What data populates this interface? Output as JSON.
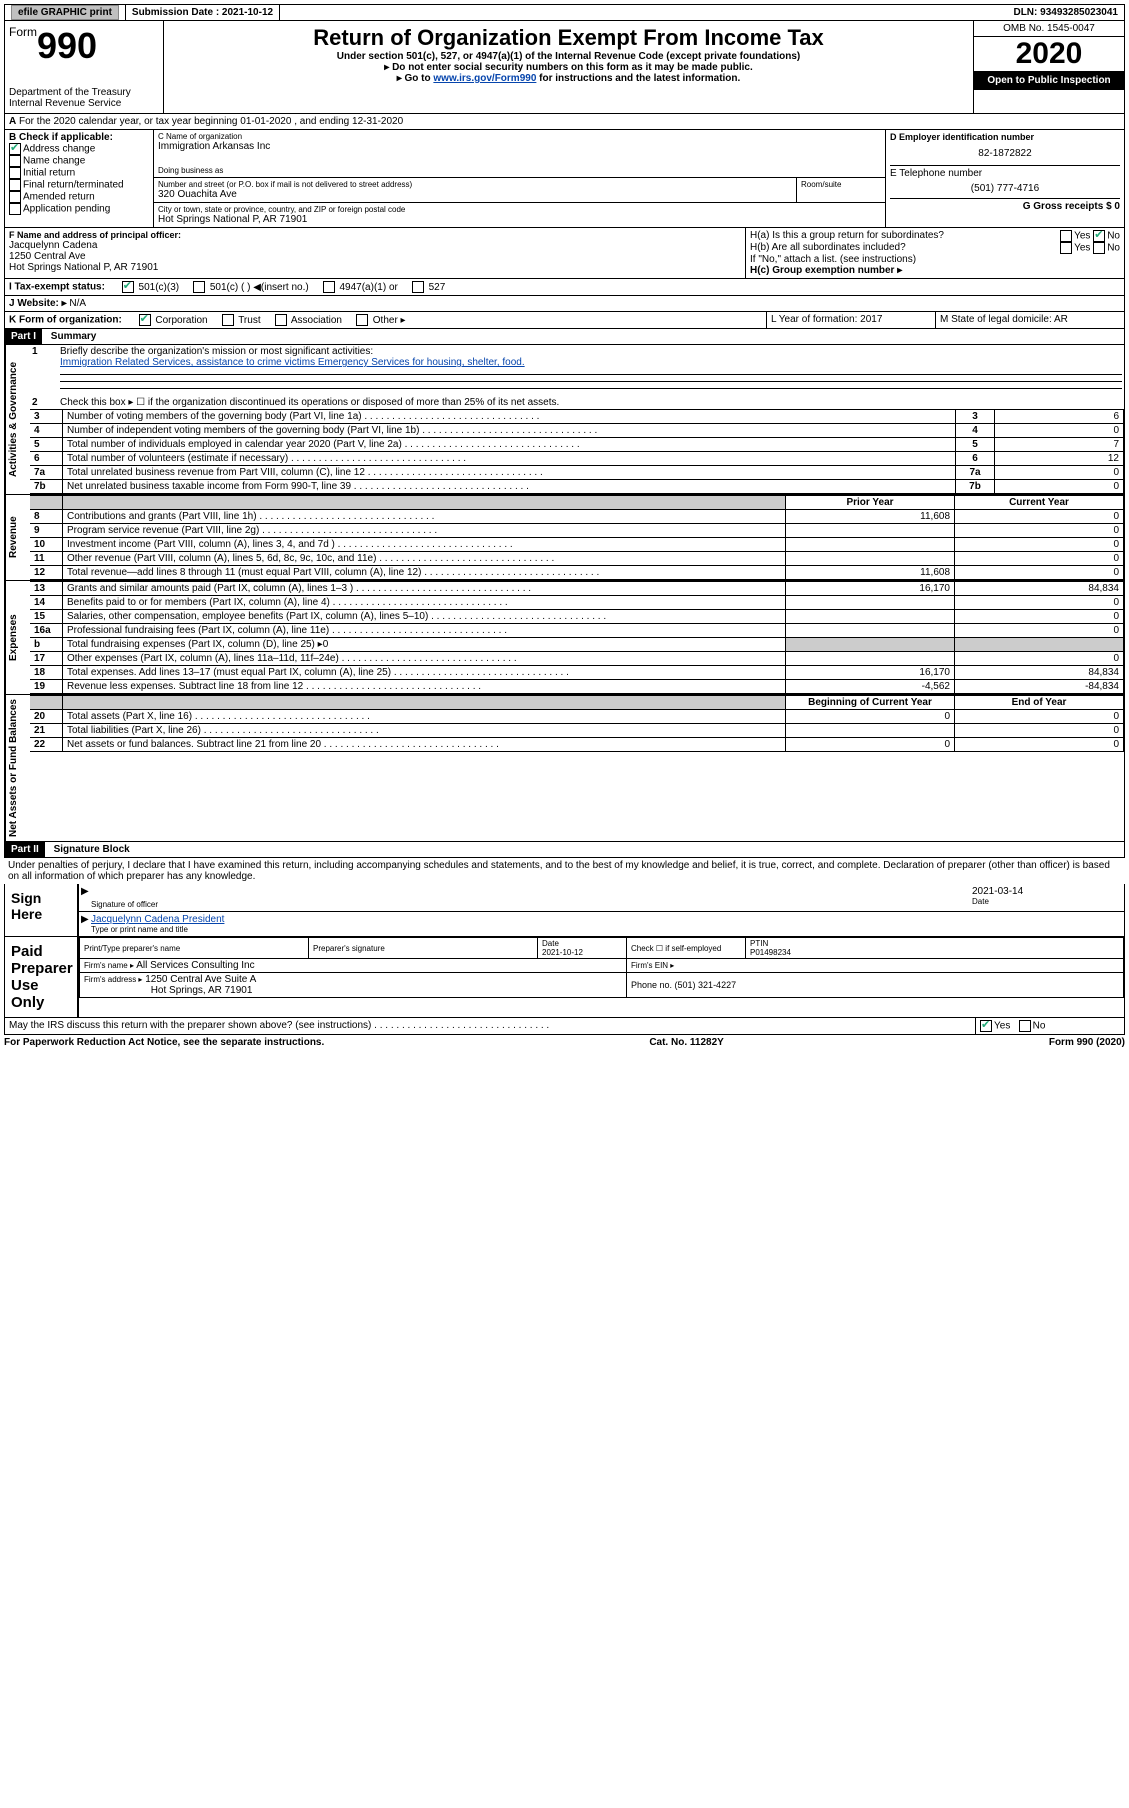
{
  "colors": {
    "link": "#0645ad",
    "dark": "#000000",
    "button_bg": "#c0c0c0",
    "check": "#22aa77",
    "shade": "#cccccc"
  },
  "topbar": {
    "efile": "efile GRAPHIC print",
    "submission_label": "Submission Date : 2021-10-12",
    "dln": "DLN: 93493285023041"
  },
  "header": {
    "form_word": "Form",
    "form_num": "990",
    "dept1": "Department of the Treasury",
    "dept2": "Internal Revenue Service",
    "title": "Return of Organization Exempt From Income Tax",
    "sub1": "Under section 501(c), 527, or 4947(a)(1) of the Internal Revenue Code (except private foundations)",
    "sub2": "▸ Do not enter social security numbers on this form as it may be made public.",
    "sub3a": "▸ Go to ",
    "sub3link": "www.irs.gov/Form990",
    "sub3b": " for instructions and the latest information.",
    "omb": "OMB No. 1545-0047",
    "year": "2020",
    "inspection": "Open to Public Inspection"
  },
  "A": {
    "text": "For the 2020 calendar year, or tax year beginning 01-01-2020    , and ending 12-31-2020"
  },
  "B": {
    "label": "B Check if applicable:",
    "items": [
      {
        "label": "Address change",
        "checked": true
      },
      {
        "label": "Name change",
        "checked": false
      },
      {
        "label": "Initial return",
        "checked": false
      },
      {
        "label": "Final return/terminated",
        "checked": false
      },
      {
        "label": "Amended return",
        "checked": false
      },
      {
        "label": "Application pending",
        "checked": false
      }
    ]
  },
  "C": {
    "name_label": "C Name of organization",
    "name": "Immigration Arkansas Inc",
    "dba_label": "Doing business as",
    "dba": "",
    "addr_label": "Number and street (or P.O. box if mail is not delivered to street address)",
    "addr": "320 Ouachita Ave",
    "room_label": "Room/suite",
    "city_label": "City or town, state or province, country, and ZIP or foreign postal code",
    "city": "Hot Springs National P, AR  71901"
  },
  "D": {
    "label": "D Employer identification number",
    "value": "82-1872822"
  },
  "E": {
    "label": "E Telephone number",
    "value": "(501) 777-4716"
  },
  "G": {
    "label": "G Gross receipts $ 0"
  },
  "F": {
    "label": "F  Name and address of principal officer:",
    "name": "Jacquelynn Cadena",
    "addr1": "1250 Central Ave",
    "addr2": "Hot Springs National P, AR  71901"
  },
  "H": {
    "a": "H(a)  Is this a group return for subordinates?",
    "a_yes": "Yes",
    "a_no": "No",
    "a_checked": "No",
    "b": "H(b)  Are all subordinates included?",
    "b_yes": "Yes",
    "b_no": "No",
    "note": "If \"No,\" attach a list. (see instructions)",
    "c": "H(c)  Group exemption number ▸"
  },
  "I": {
    "label": "I  Tax-exempt status:",
    "opts": [
      "501(c)(3)",
      "501(c) (  ) ◀(insert no.)",
      "4947(a)(1) or",
      "527"
    ],
    "checked_index": 0
  },
  "J": {
    "label": "J   Website: ▸",
    "value": "N/A"
  },
  "K": {
    "label": "K Form of organization:",
    "opts": [
      "Corporation",
      "Trust",
      "Association",
      "Other ▸"
    ],
    "checked_index": 0
  },
  "L": {
    "label": "L Year of formation: 2017"
  },
  "M": {
    "label": "M State of legal domicile: AR"
  },
  "part1": {
    "bar": "Part I",
    "title": "Summary",
    "sections": {
      "gov": {
        "label": "Activities & Governance",
        "lines": {
          "1": {
            "t": "Briefly describe the organization's mission or most significant activities:",
            "v": "Immigration Related Services, assistance to crime victims Emergency Services for housing, shelter, food."
          },
          "2": {
            "t": "Check this box ▸ ☐ if the organization discontinued its operations or disposed of more than 25% of its net assets."
          },
          "3": {
            "t": "Number of voting members of the governing body (Part VI, line 1a)",
            "box": "3",
            "val": "6"
          },
          "4": {
            "t": "Number of independent voting members of the governing body (Part VI, line 1b)",
            "box": "4",
            "val": "0"
          },
          "5": {
            "t": "Total number of individuals employed in calendar year 2020 (Part V, line 2a)",
            "box": "5",
            "val": "7"
          },
          "6": {
            "t": "Total number of volunteers (estimate if necessary)",
            "box": "6",
            "val": "12"
          },
          "7a": {
            "t": "Total unrelated business revenue from Part VIII, column (C), line 12",
            "box": "7a",
            "val": "0"
          },
          "7b": {
            "t": "Net unrelated business taxable income from Form 990-T, line 39",
            "box": "7b",
            "val": "0"
          }
        }
      },
      "rev": {
        "label": "Revenue",
        "head_prior": "Prior Year",
        "head_curr": "Current Year",
        "lines": [
          {
            "n": "8",
            "t": "Contributions and grants (Part VIII, line 1h)",
            "p": "11,608",
            "c": "0"
          },
          {
            "n": "9",
            "t": "Program service revenue (Part VIII, line 2g)",
            "p": "",
            "c": "0"
          },
          {
            "n": "10",
            "t": "Investment income (Part VIII, column (A), lines 3, 4, and 7d )",
            "p": "",
            "c": "0"
          },
          {
            "n": "11",
            "t": "Other revenue (Part VIII, column (A), lines 5, 6d, 8c, 9c, 10c, and 11e)",
            "p": "",
            "c": "0"
          },
          {
            "n": "12",
            "t": "Total revenue—add lines 8 through 11 (must equal Part VIII, column (A), line 12)",
            "p": "11,608",
            "c": "0"
          }
        ]
      },
      "exp": {
        "label": "Expenses",
        "lines": [
          {
            "n": "13",
            "t": "Grants and similar amounts paid (Part IX, column (A), lines 1–3 )",
            "p": "16,170",
            "c": "84,834"
          },
          {
            "n": "14",
            "t": "Benefits paid to or for members (Part IX, column (A), line 4)",
            "p": "",
            "c": "0"
          },
          {
            "n": "15",
            "t": "Salaries, other compensation, employee benefits (Part IX, column (A), lines 5–10)",
            "p": "",
            "c": "0"
          },
          {
            "n": "16a",
            "t": "Professional fundraising fees (Part IX, column (A), line 11e)",
            "p": "",
            "c": "0"
          },
          {
            "n": "b",
            "t": "Total fundraising expenses (Part IX, column (D), line 25) ▸0",
            "p": "shade",
            "c": "shade"
          },
          {
            "n": "17",
            "t": "Other expenses (Part IX, column (A), lines 11a–11d, 11f–24e)",
            "p": "",
            "c": "0"
          },
          {
            "n": "18",
            "t": "Total expenses. Add lines 13–17 (must equal Part IX, column (A), line 25)",
            "p": "16,170",
            "c": "84,834"
          },
          {
            "n": "19",
            "t": "Revenue less expenses. Subtract line 18 from line 12",
            "p": "-4,562",
            "c": "-84,834"
          }
        ]
      },
      "net": {
        "label": "Net Assets or Fund Balances",
        "head_prior": "Beginning of Current Year",
        "head_curr": "End of Year",
        "lines": [
          {
            "n": "20",
            "t": "Total assets (Part X, line 16)",
            "p": "0",
            "c": "0"
          },
          {
            "n": "21",
            "t": "Total liabilities (Part X, line 26)",
            "p": "",
            "c": "0"
          },
          {
            "n": "22",
            "t": "Net assets or fund balances. Subtract line 21 from line 20",
            "p": "0",
            "c": "0"
          }
        ]
      }
    }
  },
  "part2": {
    "bar": "Part II",
    "title": "Signature Block",
    "declaration": "Under penalties of perjury, I declare that I have examined this return, including accompanying schedules and statements, and to the best of my knowledge and belief, it is true, correct, and complete. Declaration of preparer (other than officer) is based on all information of which preparer has any knowledge."
  },
  "sign": {
    "here": "Sign Here",
    "sig_label": "Signature of officer",
    "date_label": "Date",
    "date": "2021-03-14",
    "name": "Jacquelynn Cadena  President",
    "name_label": "Type or print name and title"
  },
  "paid": {
    "label": "Paid Preparer Use Only",
    "h1": "Print/Type preparer's name",
    "h2": "Preparer's signature",
    "h3": "Date",
    "date": "2021-10-12",
    "h4": "Check ☐ if self-employed",
    "h5": "PTIN",
    "ptin": "P01498234",
    "firm_label": "Firm's name    ▸",
    "firm": "All Services Consulting Inc",
    "ein_label": "Firm's EIN ▸",
    "addr_label": "Firm's address ▸",
    "addr1": "1250 Central Ave Suite A",
    "addr2": "Hot Springs, AR  71901",
    "phone_label": "Phone no. (501) 321-4227"
  },
  "discuss": {
    "text": "May the IRS discuss this return with the preparer shown above? (see instructions)",
    "yes": "Yes",
    "no": "No",
    "checked": "Yes"
  },
  "footer": {
    "left": "For Paperwork Reduction Act Notice, see the separate instructions.",
    "mid": "Cat. No. 11282Y",
    "right": "Form 990 (2020)"
  }
}
